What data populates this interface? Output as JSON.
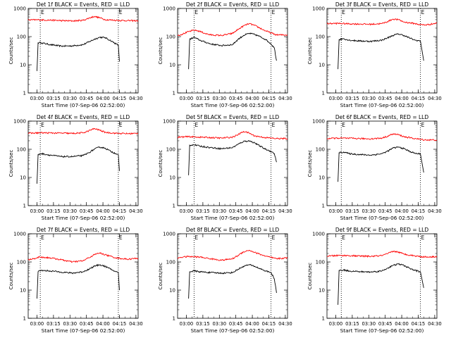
{
  "colors": {
    "events": "#000000",
    "lld": "#ff0000",
    "axes": "#000000"
  },
  "panel_layout": {
    "columns": 3,
    "rows": 3
  },
  "shared": {
    "ylabel": "Counts/sec",
    "xlabel_prefix": "Start Time (07-Sep-06 02:52:00)",
    "flag_marks": [
      "E",
      "E"
    ],
    "ytick_labels": [
      "1",
      "10",
      "100",
      "1000"
    ],
    "xtick_labels": [
      "03:00",
      "03:15",
      "03:30",
      "03:45",
      "04:00",
      "04:15",
      "04:30"
    ]
  },
  "chart_data": [
    {
      "type": "line",
      "title": "Det 1f BLACK = Events, RED = LLD",
      "xlabel": "Start Time (07-Sep-06 02:52:00)",
      "ylabel": "Counts/sec",
      "yscale": "log",
      "ylim": [
        1,
        1000
      ],
      "xlim_min": [
        0,
        100
      ],
      "markers_min": [
        11,
        82
      ],
      "series": [
        {
          "name": "Events",
          "color": "#000000",
          "x": [
            8,
            9,
            10,
            12,
            20,
            30,
            40,
            50,
            60,
            65,
            70,
            75,
            80,
            82,
            83
          ],
          "y": [
            6,
            60,
            62,
            60,
            52,
            46,
            47,
            52,
            80,
            95,
            92,
            72,
            55,
            50,
            13
          ]
        },
        {
          "name": "LLD",
          "color": "#ff0000",
          "x": [
            0,
            10,
            20,
            30,
            40,
            50,
            55,
            60,
            65,
            70,
            80,
            90,
            100
          ],
          "y": [
            390,
            395,
            385,
            370,
            360,
            380,
            450,
            520,
            470,
            400,
            380,
            370,
            365
          ]
        }
      ]
    },
    {
      "type": "line",
      "title": "Det 2f BLACK = Events, RED = LLD",
      "xlabel": "Start Time (07-Sep-06 02:52:00)",
      "ylabel": "Counts/sec",
      "yscale": "log",
      "ylim": [
        1,
        1000
      ],
      "xlim_min": [
        0,
        100
      ],
      "markers_min": [
        15,
        85
      ],
      "series": [
        {
          "name": "Events",
          "color": "#000000",
          "x": [
            10,
            11,
            15,
            20,
            30,
            40,
            50,
            55,
            60,
            65,
            70,
            75,
            80,
            85,
            88,
            90
          ],
          "y": [
            7,
            80,
            95,
            75,
            55,
            48,
            52,
            80,
            110,
            130,
            120,
            100,
            80,
            55,
            40,
            14
          ]
        },
        {
          "name": "LLD",
          "color": "#ff0000",
          "x": [
            0,
            5,
            10,
            15,
            20,
            25,
            30,
            40,
            50,
            55,
            60,
            65,
            70,
            80,
            90,
            100
          ],
          "y": [
            110,
            125,
            150,
            170,
            155,
            130,
            115,
            110,
            130,
            180,
            240,
            290,
            250,
            160,
            115,
            115
          ]
        }
      ]
    },
    {
      "type": "line",
      "title": "Det 3f BLACK = Events, RED = LLD",
      "xlabel": "Start Time (07-Sep-06 02:52:00)",
      "ylabel": "Counts/sec",
      "yscale": "log",
      "ylim": [
        1,
        1000
      ],
      "xlim_min": [
        0,
        100
      ],
      "markers_min": [
        13,
        85
      ],
      "series": [
        {
          "name": "Events",
          "color": "#000000",
          "x": [
            10,
            11,
            15,
            20,
            30,
            40,
            50,
            55,
            60,
            65,
            70,
            75,
            80,
            85,
            88
          ],
          "y": [
            7,
            78,
            85,
            75,
            70,
            68,
            75,
            90,
            110,
            125,
            110,
            90,
            75,
            70,
            14
          ]
        },
        {
          "name": "LLD",
          "color": "#ff0000",
          "x": [
            0,
            10,
            20,
            30,
            40,
            50,
            55,
            60,
            65,
            70,
            80,
            85,
            90,
            100
          ],
          "y": [
            290,
            295,
            285,
            280,
            275,
            290,
            340,
            420,
            400,
            330,
            290,
            265,
            260,
            300
          ]
        }
      ]
    },
    {
      "type": "line",
      "title": "Det 4f BLACK = Events, RED = LLD",
      "xlabel": "Start Time (07-Sep-06 02:52:00)",
      "ylabel": "Counts/sec",
      "yscale": "log",
      "ylim": [
        1,
        1000
      ],
      "xlim_min": [
        0,
        100
      ],
      "markers_min": [
        11,
        82
      ],
      "series": [
        {
          "name": "Events",
          "color": "#000000",
          "x": [
            8,
            9,
            12,
            20,
            30,
            40,
            50,
            55,
            60,
            65,
            70,
            75,
            80,
            82,
            83
          ],
          "y": [
            6,
            65,
            70,
            62,
            55,
            55,
            60,
            75,
            100,
            120,
            110,
            85,
            70,
            65,
            17
          ]
        },
        {
          "name": "LLD",
          "color": "#ff0000",
          "x": [
            0,
            10,
            20,
            30,
            40,
            50,
            55,
            60,
            65,
            70,
            80,
            90,
            100
          ],
          "y": [
            370,
            385,
            380,
            375,
            365,
            385,
            450,
            540,
            480,
            400,
            370,
            360,
            365
          ]
        }
      ]
    },
    {
      "type": "line",
      "title": "Det 5f BLACK = Events, RED = LLD",
      "xlabel": "Start Time (07-Sep-06 02:52:00)",
      "ylabel": "Counts/sec",
      "yscale": "log",
      "ylim": [
        1,
        1000
      ],
      "xlim_min": [
        0,
        100
      ],
      "markers_min": [
        15,
        85
      ],
      "series": [
        {
          "name": "Events",
          "color": "#000000",
          "x": [
            10,
            11,
            15,
            20,
            30,
            40,
            50,
            55,
            60,
            65,
            70,
            75,
            80,
            85,
            88,
            90
          ],
          "y": [
            12,
            140,
            145,
            130,
            115,
            105,
            115,
            150,
            190,
            200,
            170,
            130,
            100,
            85,
            70,
            35
          ]
        },
        {
          "name": "LLD",
          "color": "#ff0000",
          "x": [
            0,
            10,
            20,
            30,
            40,
            50,
            55,
            60,
            65,
            70,
            80,
            85,
            90,
            100
          ],
          "y": [
            270,
            280,
            270,
            260,
            250,
            270,
            330,
            430,
            380,
            300,
            260,
            250,
            240,
            240
          ]
        }
      ]
    },
    {
      "type": "line",
      "title": "Det 6f BLACK = Events, RED = LLD",
      "xlabel": "Start Time (07-Sep-06 02:52:00)",
      "ylabel": "Counts/sec",
      "yscale": "log",
      "ylim": [
        1,
        1000
      ],
      "xlim_min": [
        0,
        100
      ],
      "markers_min": [
        13,
        85
      ],
      "series": [
        {
          "name": "Events",
          "color": "#000000",
          "x": [
            10,
            11,
            15,
            20,
            30,
            40,
            50,
            55,
            60,
            65,
            70,
            75,
            80,
            85,
            88
          ],
          "y": [
            7,
            75,
            80,
            70,
            65,
            62,
            70,
            85,
            110,
            120,
            105,
            85,
            72,
            68,
            15
          ]
        },
        {
          "name": "LLD",
          "color": "#ff0000",
          "x": [
            0,
            10,
            20,
            30,
            40,
            50,
            55,
            60,
            65,
            70,
            80,
            85,
            90,
            100
          ],
          "y": [
            240,
            250,
            245,
            240,
            235,
            250,
            290,
            350,
            330,
            280,
            240,
            225,
            215,
            215
          ]
        }
      ]
    },
    {
      "type": "line",
      "title": "Det 7f BLACK = Events, RED = LLD",
      "xlabel": "Start Time (07-Sep-06 02:52:00)",
      "ylabel": "Counts/sec",
      "yscale": "log",
      "ylim": [
        1,
        1000
      ],
      "xlim_min": [
        0,
        100
      ],
      "markers_min": [
        11,
        82
      ],
      "series": [
        {
          "name": "Events",
          "color": "#000000",
          "x": [
            8,
            9,
            12,
            20,
            30,
            40,
            50,
            55,
            60,
            65,
            70,
            75,
            80,
            82,
            83
          ],
          "y": [
            5,
            45,
            50,
            48,
            44,
            40,
            45,
            55,
            70,
            80,
            70,
            55,
            45,
            42,
            10
          ]
        },
        {
          "name": "LLD",
          "color": "#ff0000",
          "x": [
            0,
            5,
            10,
            20,
            30,
            40,
            50,
            55,
            60,
            65,
            70,
            80,
            90,
            100
          ],
          "y": [
            120,
            130,
            150,
            140,
            120,
            100,
            110,
            140,
            180,
            210,
            180,
            140,
            125,
            135
          ]
        }
      ]
    },
    {
      "type": "line",
      "title": "Det 8f BLACK = Events, RED = LLD",
      "xlabel": "Start Time (07-Sep-06 02:52:00)",
      "ylabel": "Counts/sec",
      "yscale": "log",
      "ylim": [
        1,
        1000
      ],
      "xlim_min": [
        0,
        100
      ],
      "markers_min": [
        15,
        85
      ],
      "series": [
        {
          "name": "Events",
          "color": "#000000",
          "x": [
            10,
            11,
            15,
            20,
            30,
            40,
            50,
            55,
            60,
            65,
            70,
            75,
            80,
            85,
            88,
            90
          ],
          "y": [
            5,
            45,
            48,
            45,
            42,
            40,
            42,
            55,
            70,
            80,
            70,
            58,
            48,
            42,
            25,
            8
          ]
        },
        {
          "name": "LLD",
          "color": "#ff0000",
          "x": [
            0,
            5,
            10,
            20,
            30,
            40,
            50,
            55,
            60,
            65,
            70,
            80,
            90,
            100
          ],
          "y": [
            140,
            150,
            155,
            150,
            130,
            115,
            130,
            170,
            230,
            260,
            220,
            160,
            130,
            140
          ]
        }
      ]
    },
    {
      "type": "line",
      "title": "Det 9f BLACK = Events, RED = LLD",
      "xlabel": "Start Time (07-Sep-06 02:52:00)",
      "ylabel": "Counts/sec",
      "yscale": "log",
      "ylim": [
        1,
        1000
      ],
      "xlim_min": [
        0,
        100
      ],
      "markers_min": [
        13,
        85
      ],
      "series": [
        {
          "name": "Events",
          "color": "#000000",
          "x": [
            10,
            11,
            15,
            20,
            30,
            40,
            50,
            55,
            60,
            65,
            70,
            75,
            80,
            85,
            88
          ],
          "y": [
            3,
            50,
            52,
            48,
            45,
            44,
            48,
            60,
            75,
            85,
            75,
            60,
            50,
            45,
            12
          ]
        },
        {
          "name": "LLD",
          "color": "#ff0000",
          "x": [
            0,
            10,
            20,
            30,
            40,
            50,
            55,
            60,
            65,
            70,
            80,
            85,
            90,
            100
          ],
          "y": [
            160,
            170,
            168,
            162,
            158,
            168,
            195,
            240,
            225,
            190,
            165,
            155,
            150,
            155
          ]
        }
      ]
    }
  ]
}
